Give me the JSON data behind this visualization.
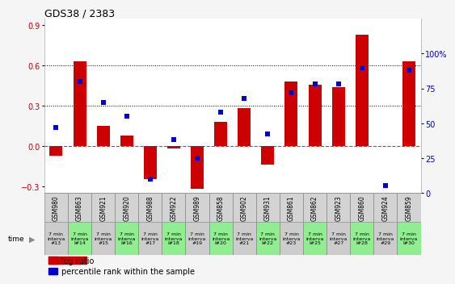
{
  "title": "GDS38 / 2383",
  "samples": [
    "GSM980",
    "GSM863",
    "GSM921",
    "GSM920",
    "GSM988",
    "GSM922",
    "GSM989",
    "GSM858",
    "GSM902",
    "GSM931",
    "GSM861",
    "GSM862",
    "GSM923",
    "GSM860",
    "GSM924",
    "GSM859"
  ],
  "time_labels": [
    "7 min\ninterva\n#13",
    "7 min\ninterva\nl#14",
    "7 min\ninterva\n#15",
    "7 min\ninterva\nl#16",
    "7 min\ninterva\n#17",
    "7 min\ninterva\nl#18",
    "7 min\ninterva\n#19",
    "7 min\ninterva\nl#20",
    "7 min\ninterva\n#21",
    "7 min\ninterva\nl#22",
    "7 min\ninterva\n#23",
    "7 min\ninterva\nl#25",
    "7 min\ninterva\n#27",
    "7 min\ninterva\nl#28",
    "7 min\ninterva\n#29",
    "7 min\ninterva\nl#30"
  ],
  "log_ratio": [
    -0.07,
    0.63,
    0.15,
    0.08,
    -0.25,
    -0.02,
    -0.32,
    0.18,
    0.28,
    -0.14,
    0.48,
    0.46,
    0.44,
    0.83,
    0.0,
    0.63
  ],
  "percentile_rank": [
    47,
    80,
    65,
    55,
    10,
    38,
    25,
    58,
    68,
    42,
    72,
    78,
    78,
    90,
    5,
    88
  ],
  "bar_color": "#cc0000",
  "dot_color": "#0000cc",
  "ylim_left": [
    -0.35,
    0.95
  ],
  "ylim_right": [
    0,
    125
  ],
  "yticks_left": [
    -0.3,
    0.0,
    0.3,
    0.6,
    0.9
  ],
  "yticks_right": [
    0,
    25,
    50,
    75,
    100
  ],
  "dotted_lines": [
    0.3,
    0.6
  ],
  "plot_bg": "#ffffff",
  "fig_bg": "#f5f5f5",
  "time_bg_even": "#cccccc",
  "time_bg_odd": "#90ee90",
  "sample_bg": "#d3d3d3",
  "legend_log_ratio": "log ratio",
  "legend_percentile": "percentile rank within the sample",
  "left_label_color": "#cc0000",
  "right_label_color": "#0000cc",
  "bar_width": 0.55,
  "dot_size": 22,
  "tick_fontsize": 7,
  "sample_fontsize": 5.5,
  "time_fontsize": 4.5,
  "title_fontsize": 9,
  "legend_fontsize": 7
}
